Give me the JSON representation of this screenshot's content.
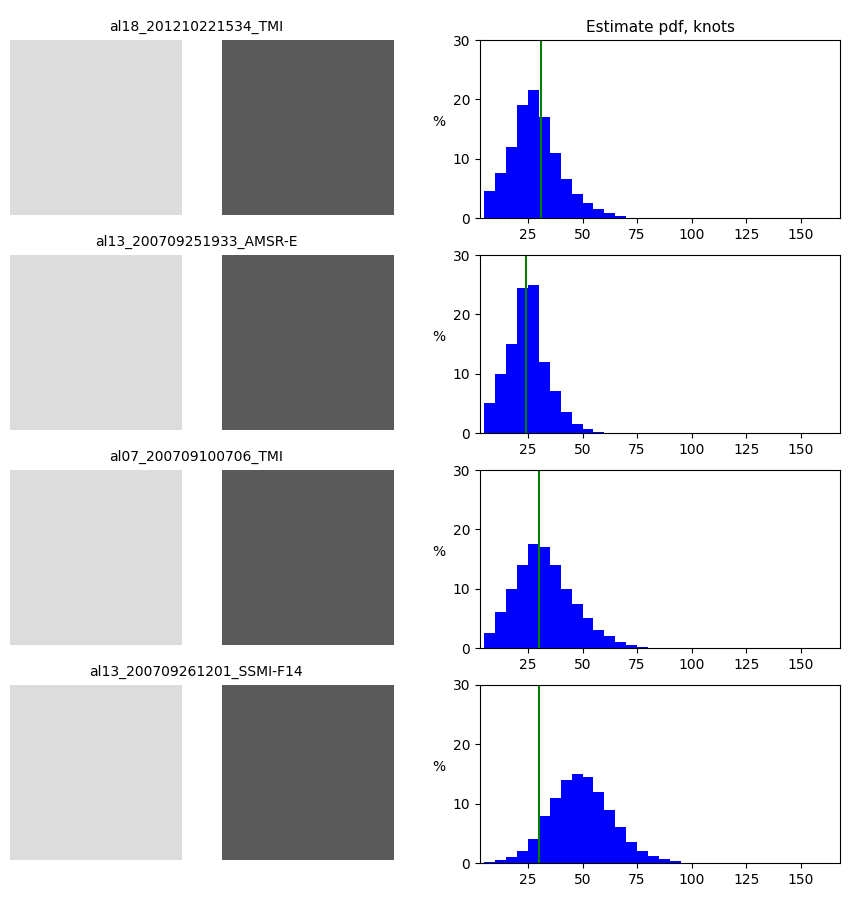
{
  "chart_data": [
    {
      "type": "histogram",
      "title": "Estimate pdf, knots",
      "ylabel": "%",
      "bins": [
        5,
        10,
        15,
        20,
        25,
        30,
        35,
        40,
        45,
        50,
        55,
        60,
        65,
        70
      ],
      "values": [
        4.5,
        7.5,
        12,
        19,
        21.5,
        17,
        11,
        6.5,
        4,
        2.5,
        1.5,
        0.8,
        0.3
      ],
      "color": "#0000ff",
      "reference_line": {
        "value": 31,
        "color": "#008000"
      },
      "xlim": [
        3,
        168
      ],
      "ylim": [
        0,
        30
      ],
      "xticks": [
        25,
        50,
        75,
        100,
        125,
        150
      ],
      "yticks": [
        0,
        10,
        20,
        30
      ]
    },
    {
      "type": "histogram",
      "ylabel": "%",
      "bins": [
        5,
        10,
        15,
        20,
        25,
        30,
        35,
        40,
        45,
        50,
        55,
        60
      ],
      "values": [
        5,
        10,
        15,
        24.5,
        25,
        12,
        7,
        3.5,
        1.5,
        0.6,
        0.2
      ],
      "color": "#0000ff",
      "reference_line": {
        "value": 24,
        "color": "#008000"
      },
      "xlim": [
        3,
        168
      ],
      "ylim": [
        0,
        30
      ],
      "xticks": [
        25,
        50,
        75,
        100,
        125,
        150
      ],
      "yticks": [
        0,
        10,
        20,
        30
      ]
    },
    {
      "type": "histogram",
      "ylabel": "%",
      "bins": [
        5,
        10,
        15,
        20,
        25,
        30,
        35,
        40,
        45,
        50,
        55,
        60,
        65,
        70,
        75,
        80
      ],
      "values": [
        2.5,
        6,
        10,
        14,
        17.5,
        17,
        14,
        10,
        7.5,
        5,
        3,
        2,
        1,
        0.5,
        0.2
      ],
      "color": "#0000ff",
      "reference_line": {
        "value": 30,
        "color": "#008000"
      },
      "xlim": [
        3,
        168
      ],
      "ylim": [
        0,
        30
      ],
      "xticks": [
        25,
        50,
        75,
        100,
        125,
        150
      ],
      "yticks": [
        0,
        10,
        20,
        30
      ]
    },
    {
      "type": "histogram",
      "ylabel": "%",
      "bins": [
        5,
        10,
        15,
        20,
        25,
        30,
        35,
        40,
        45,
        50,
        55,
        60,
        65,
        70,
        75,
        80,
        85,
        90,
        95
      ],
      "values": [
        0.2,
        0.5,
        1,
        2,
        4,
        8,
        11,
        14,
        15,
        14.5,
        12,
        9,
        6,
        3.5,
        2,
        1.2,
        0.7,
        0.3
      ],
      "color": "#0000ff",
      "reference_line": {
        "value": 30,
        "color": "#008000"
      },
      "xlim": [
        3,
        168
      ],
      "ylim": [
        0,
        30
      ],
      "xticks": [
        25,
        50,
        75,
        100,
        125,
        150
      ],
      "yticks": [
        0,
        10,
        20,
        30
      ]
    }
  ],
  "images": [
    {
      "caption": "al18_201210221534_TMI"
    },
    {
      "caption": "al13_200709251933_AMSR-E"
    },
    {
      "caption": "al07_200709100706_TMI"
    },
    {
      "caption": "al13_200709261201_SSMI-F14"
    }
  ]
}
